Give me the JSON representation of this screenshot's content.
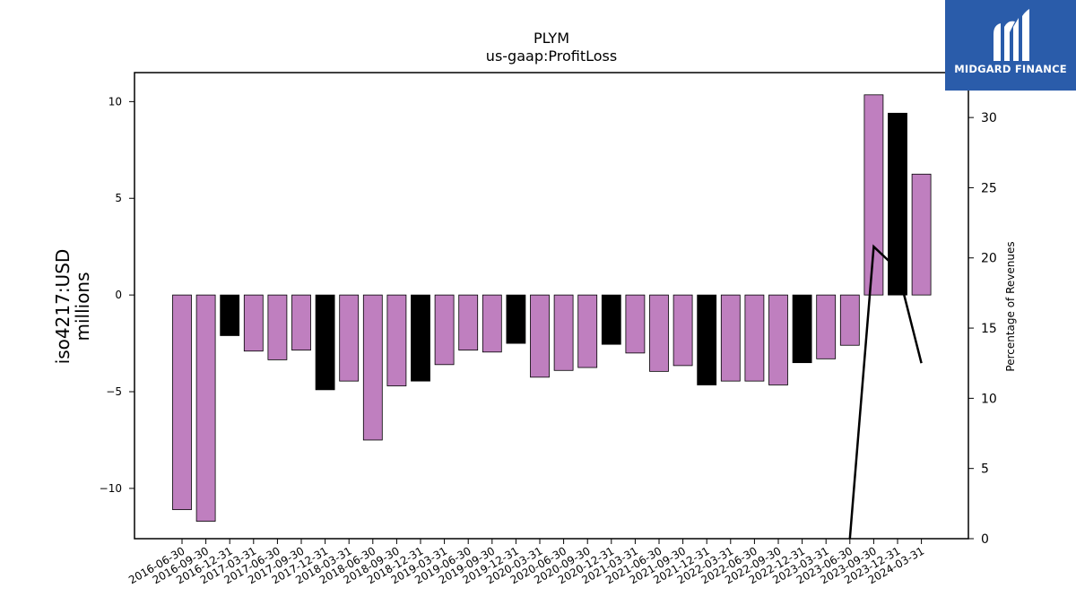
{
  "brand": {
    "name": "MIDGARD FINANCE",
    "icon": "mf-logo-icon",
    "background": "#2a5caa"
  },
  "chart_data": {
    "type": "bar",
    "title": "PLYM",
    "subtitle": "us-gaap:ProfitLoss",
    "ylabel": "iso4217:USD\nmillions",
    "y2label": "Percentage of Revenues",
    "ylim": [
      -12.6,
      11.5
    ],
    "y2lim": [
      0,
      33.2
    ],
    "yticks": [
      -10,
      -5,
      0,
      5,
      10
    ],
    "y2ticks": [
      0,
      5,
      10,
      15,
      20,
      25,
      30
    ],
    "grid": false,
    "colors": {
      "quarter": "#bf7fbf",
      "year_end": "#000000",
      "line": "#000000"
    },
    "categories": [
      "2016-06-30",
      "2016-09-30",
      "2016-12-31",
      "2017-03-31",
      "2017-06-30",
      "2017-09-30",
      "2017-12-31",
      "2018-03-31",
      "2018-06-30",
      "2018-09-30",
      "2018-12-31",
      "2019-03-31",
      "2019-06-30",
      "2019-09-30",
      "2019-12-31",
      "2020-03-31",
      "2020-06-30",
      "2020-09-30",
      "2020-12-31",
      "2021-03-31",
      "2021-06-30",
      "2021-09-30",
      "2021-12-31",
      "2022-03-31",
      "2022-06-30",
      "2022-09-30",
      "2022-12-31",
      "2023-03-31",
      "2023-06-30",
      "2023-09-30",
      "2023-12-31",
      "2024-03-31"
    ],
    "values": [
      -11.1,
      -11.7,
      -2.1,
      -2.9,
      -3.35,
      -2.85,
      -4.9,
      -4.45,
      -7.5,
      -4.7,
      -4.45,
      -3.6,
      -2.85,
      -2.95,
      -2.5,
      -4.25,
      -3.9,
      -3.75,
      -2.55,
      -3.0,
      -3.95,
      -3.65,
      -4.65,
      -4.45,
      -4.45,
      -4.65,
      -3.5,
      -3.3,
      -2.6,
      10.35,
      9.4,
      6.25
    ],
    "year_end": [
      false,
      false,
      true,
      false,
      false,
      false,
      true,
      false,
      false,
      false,
      true,
      false,
      false,
      false,
      true,
      false,
      false,
      false,
      true,
      false,
      false,
      false,
      true,
      false,
      false,
      false,
      true,
      false,
      false,
      false,
      true,
      false
    ],
    "line_series": {
      "name": "",
      "points": [
        {
          "x": "2023-06-30",
          "y": 0
        },
        {
          "x": "2023-09-30",
          "y": 20.8
        },
        {
          "x": "2023-12-31",
          "y": 19.2
        },
        {
          "x": "2024-03-31",
          "y": 12.5
        }
      ]
    }
  }
}
